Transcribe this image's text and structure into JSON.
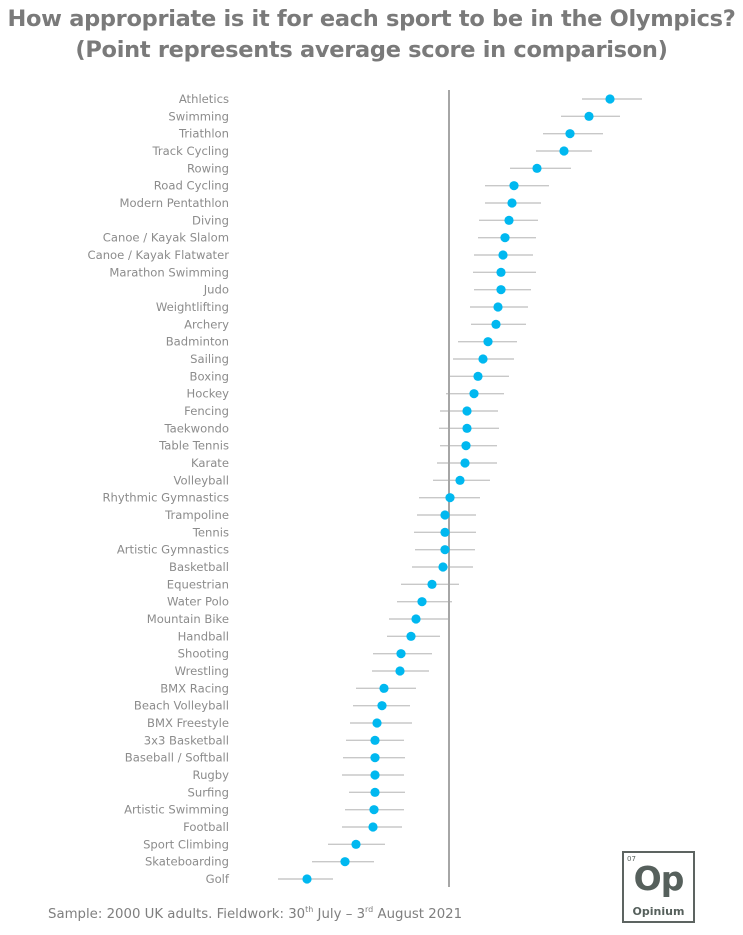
{
  "title_line1": "How appropriate is it for each sport to be in the Olympics?",
  "title_line2": "(Point represents average score in comparison)",
  "footer": {
    "prefix": "Sample: 2000 UK adults. Fieldwork: 30",
    "sup1": "th",
    "mid": " July – 3",
    "sup2": "rd",
    "suffix": " August 2021"
  },
  "logo": {
    "number": "07",
    "symbol": "Op",
    "name": "Opinium"
  },
  "colors": {
    "point": "#00b8f0",
    "range": "#c8c8c8",
    "axis": "#a6a6a6",
    "label": "#8c8c8c",
    "title": "#7a7a7a"
  },
  "chart_data": {
    "type": "dot-range",
    "title": "How appropriate is it for each sport to be in the Olympics? (Point represents average score in comparison)",
    "xlabel": "",
    "ylabel": "",
    "reference_line": 0,
    "xlim": [
      -1.75,
      2.0
    ],
    "grid": false,
    "units": "relative score vs. average (arbitrary units, no axis ticks shown)",
    "categories": [
      "Athletics",
      "Swimming",
      "Triathlon",
      "Track Cycling",
      "Rowing",
      "Road Cycling",
      "Modern Pentathlon",
      "Diving",
      "Canoe / Kayak Slalom",
      "Canoe / Kayak Flatwater",
      "Marathon Swimming",
      "Judo",
      "Weightlifting",
      "Archery",
      "Badminton",
      "Sailing",
      "Boxing",
      "Hockey",
      "Fencing",
      "Taekwondo",
      "Table Tennis",
      "Karate",
      "Volleyball",
      "Rhythmic Gymnastics",
      "Trampoline",
      "Tennis",
      "Artistic Gymnastics",
      "Basketball",
      "Equestrian",
      "Water Polo",
      "Mountain Bike",
      "Handball",
      "Shooting",
      "Wrestling",
      "BMX Racing",
      "Beach Volleyball",
      "BMX Freestyle",
      "3x3 Basketball",
      "Baseball / Softball",
      "Rugby",
      "Surfing",
      "Artistic Swimming",
      "Football",
      "Sport Climbing",
      "Skateboarding",
      "Golf"
    ],
    "values": [
      1.61,
      1.4,
      1.21,
      1.15,
      0.88,
      0.65,
      0.63,
      0.6,
      0.56,
      0.54,
      0.52,
      0.52,
      0.49,
      0.47,
      0.39,
      0.34,
      0.29,
      0.25,
      0.18,
      0.18,
      0.17,
      0.16,
      0.11,
      0.01,
      -0.04,
      -0.04,
      -0.04,
      -0.06,
      -0.17,
      -0.27,
      -0.33,
      -0.38,
      -0.48,
      -0.49,
      -0.65,
      -0.67,
      -0.72,
      -0.74,
      -0.74,
      -0.74,
      -0.74,
      -0.75,
      -0.76,
      -0.93,
      -1.04,
      -1.42
    ],
    "low": [
      1.33,
      1.12,
      0.94,
      0.87,
      0.61,
      0.36,
      0.36,
      0.3,
      0.29,
      0.25,
      0.24,
      0.25,
      0.21,
      0.22,
      0.09,
      0.04,
      0.0,
      -0.03,
      -0.09,
      -0.1,
      -0.09,
      -0.12,
      -0.16,
      -0.3,
      -0.32,
      -0.35,
      -0.34,
      -0.37,
      -0.48,
      -0.52,
      -0.6,
      -0.62,
      -0.76,
      -0.77,
      -0.93,
      -0.96,
      -0.99,
      -1.03,
      -1.06,
      -1.07,
      -1.0,
      -1.04,
      -1.07,
      -1.21,
      -1.37,
      -1.71
    ],
    "high": [
      1.93,
      1.71,
      1.54,
      1.43,
      1.22,
      1.0,
      0.92,
      0.89,
      0.87,
      0.84,
      0.87,
      0.82,
      0.79,
      0.77,
      0.68,
      0.65,
      0.6,
      0.55,
      0.49,
      0.5,
      0.48,
      0.48,
      0.41,
      0.31,
      0.27,
      0.27,
      0.26,
      0.24,
      0.1,
      0.03,
      0.0,
      -0.09,
      -0.17,
      -0.2,
      -0.33,
      -0.39,
      -0.37,
      -0.45,
      -0.44,
      -0.45,
      -0.44,
      -0.45,
      -0.47,
      -0.64,
      -0.75,
      -1.16
    ]
  }
}
